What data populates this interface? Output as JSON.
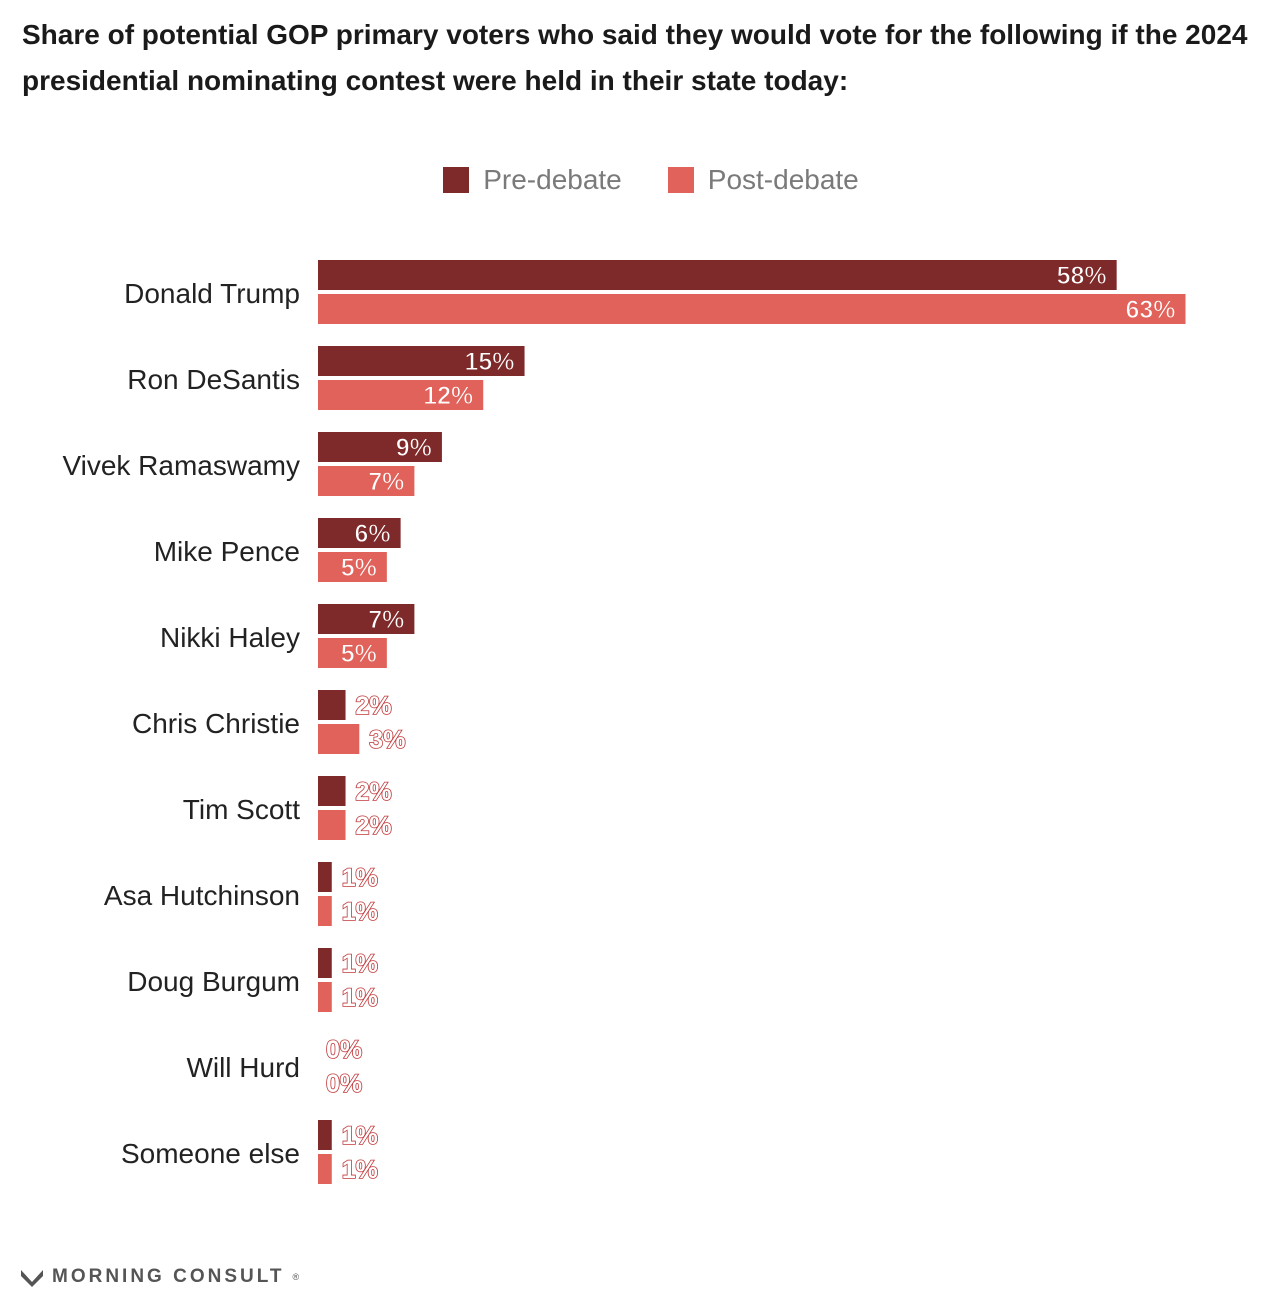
{
  "title": "Share of potential GOP primary voters who said they would vote for the following if the 2024 presidential nominating contest were held in their state today:",
  "legend": {
    "pre": "Pre-debate",
    "post": "Post-debate"
  },
  "colors": {
    "pre": "#7f2a2a",
    "post": "#e0625a",
    "label_outline": "#c0393b"
  },
  "footer": {
    "brand": "MORNING CONSULT",
    "mark": "®"
  },
  "chart_data": {
    "type": "bar",
    "orientation": "horizontal",
    "categories": [
      "Donald Trump",
      "Ron DeSantis",
      "Vivek Ramaswamy",
      "Mike Pence",
      "Nikki Haley",
      "Chris Christie",
      "Tim Scott",
      "Asa Hutchinson",
      "Doug Burgum",
      "Will Hurd",
      "Someone else"
    ],
    "series": [
      {
        "name": "Pre-debate",
        "values": [
          58,
          15,
          9,
          6,
          7,
          2,
          2,
          1,
          1,
          0,
          1
        ]
      },
      {
        "name": "Post-debate",
        "values": [
          63,
          12,
          7,
          5,
          5,
          3,
          2,
          1,
          1,
          0,
          1
        ]
      }
    ],
    "value_suffix": "%",
    "legend_position": "top-center",
    "grid": false
  }
}
